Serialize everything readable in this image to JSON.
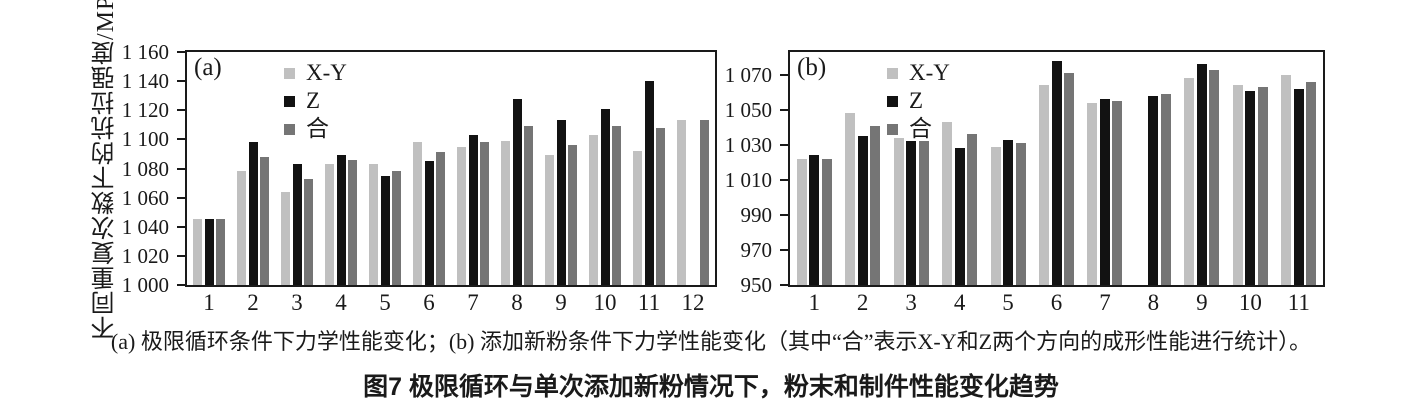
{
  "figure_caption": {
    "line1": "(a) 极限循环条件下力学性能变化；(b) 添加新粉条件下力学性能变化（其中“合”表示X-Y和Z两个方向的成形性能进行统计）。",
    "line2": "图7  极限循环与单次添加新粉情况下，粉末和制件性能变化趋势"
  },
  "colors": {
    "series_xy": "#c0c0c0",
    "series_z": "#121212",
    "series_he": "#757575",
    "frame": "#1a1a1a",
    "text": "#1a1a1a"
  },
  "chart_data": [
    {
      "type": "bar",
      "panel_label": "(a)",
      "title": "",
      "xlabel": "",
      "ylabel": "不同重复次数下的抗拉强度/MPa",
      "grid": false,
      "legend_position": "inset-top-left",
      "legend": [
        "X-Y",
        "Z",
        "合"
      ],
      "categories": [
        "1",
        "2",
        "3",
        "4",
        "5",
        "6",
        "7",
        "8",
        "9",
        "10",
        "11",
        "12"
      ],
      "series": [
        {
          "name": "X-Y",
          "values": [
            1045,
            1078,
            1064,
            1083,
            1083,
            1098,
            1095,
            1099,
            1089,
            1103,
            1092,
            1113
          ]
        },
        {
          "name": "Z",
          "values": [
            1045,
            1098,
            1083,
            1089,
            1075,
            1085,
            1103,
            1128,
            1113,
            1121,
            1140,
            null
          ]
        },
        {
          "name": "合",
          "values": [
            1045,
            1088,
            1073,
            1086,
            1078,
            1091,
            1098,
            1109,
            1096,
            1109,
            1108,
            1113
          ]
        }
      ],
      "ylim": [
        1000,
        1160
      ],
      "yticks": [
        [
          1000,
          "1 000"
        ],
        [
          1020,
          "1 020"
        ],
        [
          1040,
          "1 040"
        ],
        [
          1060,
          "1 060"
        ],
        [
          1080,
          "1 080"
        ],
        [
          1100,
          "1 100"
        ],
        [
          1120,
          "1 120"
        ],
        [
          1140,
          "1 140"
        ],
        [
          1160,
          "1 160"
        ]
      ]
    },
    {
      "type": "bar",
      "panel_label": "(b)",
      "title": "",
      "xlabel": "",
      "ylabel": "",
      "grid": false,
      "legend_position": "inset-top-left",
      "legend": [
        "X-Y",
        "Z",
        "合"
      ],
      "categories": [
        "1",
        "2",
        "3",
        "4",
        "5",
        "6",
        "7",
        "8",
        "9",
        "10",
        "11"
      ],
      "series": [
        {
          "name": "X-Y",
          "values": [
            1022,
            1048,
            1034,
            1043,
            1029,
            1064,
            1054,
            null,
            1068,
            1064,
            1070
          ]
        },
        {
          "name": "Z",
          "values": [
            1024,
            1035,
            1032,
            1028,
            1033,
            1078,
            1056,
            1058,
            1076,
            1061,
            1062
          ]
        },
        {
          "name": "合",
          "values": [
            1022,
            1041,
            1032,
            1036,
            1031,
            1071,
            1055,
            1059,
            1073,
            1063,
            1066
          ]
        }
      ],
      "ylim": [
        950,
        1083
      ],
      "yticks": [
        [
          950,
          "950"
        ],
        [
          970,
          "970"
        ],
        [
          990,
          "990"
        ],
        [
          1010,
          "1 010"
        ],
        [
          1030,
          "1 030"
        ],
        [
          1050,
          "1 050"
        ],
        [
          1070,
          "1 070"
        ]
      ]
    }
  ]
}
